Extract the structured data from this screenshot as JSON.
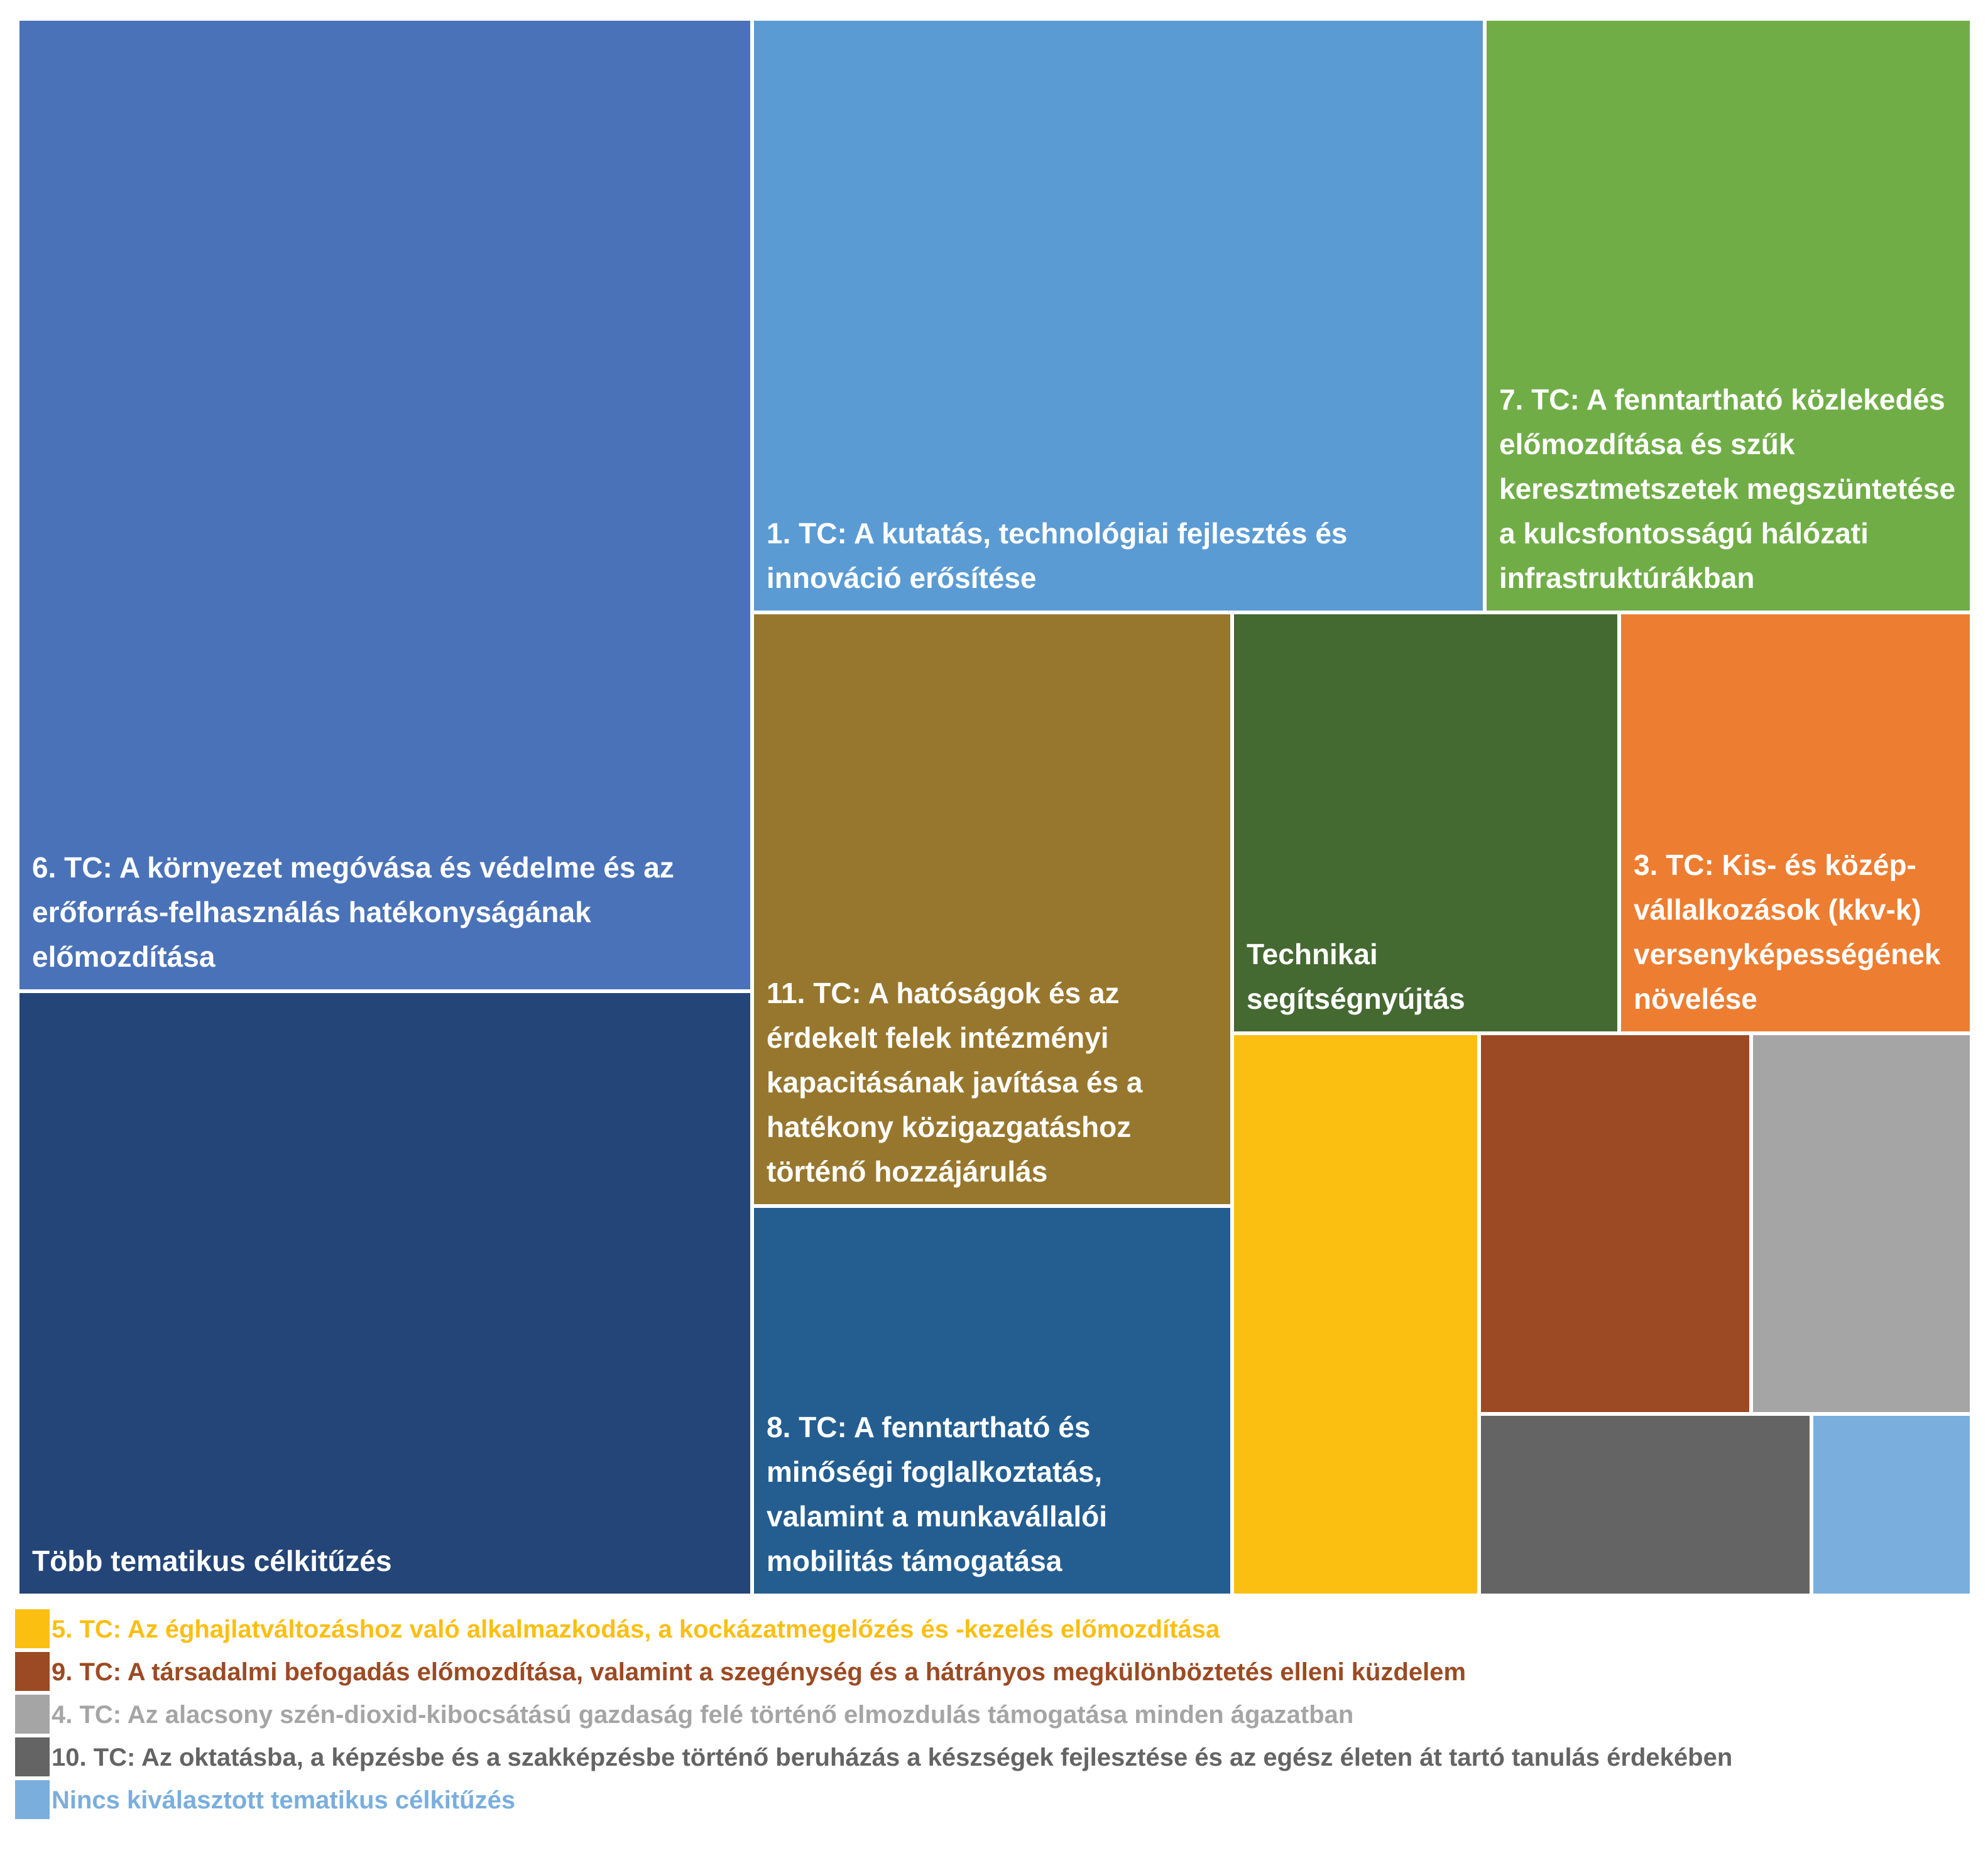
{
  "chart_data": {
    "type": "treemap",
    "tiles": [
      {
        "name": "6. TC: A környezet megóvása és védelme és az erőforrás-felhasználás hatékonyságának előmozdítása",
        "color": "#4A72B8"
      },
      {
        "name": "Több tematikus célkitűzés",
        "color": "#234577"
      },
      {
        "name": "1. TC: A kutatás, technológiai fejlesztés és innováció erősítése",
        "color": "#5B9BD3"
      },
      {
        "name": "7. TC: A fenntartható közlekedés előmozdítása és szűk keresztmetszetek megszüntetése a kulcsfontosságú hálózati infrastruktúrákban",
        "color": "#70AD47"
      },
      {
        "name": "11. TC: A hatóságok és az érdekelt felek intézményi kapacitásának javítása és a hatékony közigazgatáshoz történő hozzájárulás",
        "color": "#97772E"
      },
      {
        "name": "Technikai segítségnyújtás",
        "color": "#446931"
      },
      {
        "name": "3. TC: Kis- és közép-vállalkozások (kkv-k) versenyképességének növelése",
        "color": "#ED7D31"
      },
      {
        "name": "8. TC: A fenntartható és minőségi foglalkoztatás, valamint a munkavállalói mobilitás támogatása",
        "color": "#245E91"
      },
      {
        "name": "5. TC: Az éghajlatváltozáshoz való alkalmazkodás, a kockázatmegelőzés és -kezelés előmozdítása",
        "color": "#FBBF11"
      },
      {
        "name": "9. TC: A társadalmi befogadás előmozdítása, valamint a szegénység és a hátrányos megkülönböztetés elleni küzdelem",
        "color": "#9C4A23"
      },
      {
        "name": "4. TC: Az alacsony szén-dioxid-kibocsátású gazdaság felé történő elmozdulás támogatása minden ágazatban",
        "color": "#A5A5A5"
      },
      {
        "name": "10. TC: Az oktatásba, a képzésbe és a szakképzésbe történő beruházás a készségek fejlesztése és az egész életen át tartó tanulás érdekében",
        "color": "#646464"
      },
      {
        "name": "Nincs kiválasztott tematikus célkitűzés",
        "color": "#7AAEDD"
      }
    ],
    "legend": [
      {
        "label": "5. TC: Az éghajlatváltozáshoz való alkalmazkodás, a kockázatmegelőzés és -kezelés előmozdítása",
        "color": "#FBBF11"
      },
      {
        "label": "9. TC: A társadalmi befogadás előmozdítása, valamint a szegénység és a hátrányos megkülönböztetés elleni küzdelem",
        "color": "#9C4A23"
      },
      {
        "label": "4. TC: Az alacsony szén-dioxid-kibocsátású gazdaság felé történő elmozdulás támogatása minden ágazatban",
        "color": "#A5A5A5"
      },
      {
        "label": "10. TC: Az oktatásba, a képzésbe és a szakképzésbe történő beruházás a készségek fejlesztése és az egész életen át tartó tanulás érdekében",
        "color": "#646464"
      },
      {
        "label": "Nincs kiválasztott tematikus célkitűzés",
        "color": "#7AAEDD"
      }
    ],
    "legend_position": "bottom",
    "grid": false
  }
}
